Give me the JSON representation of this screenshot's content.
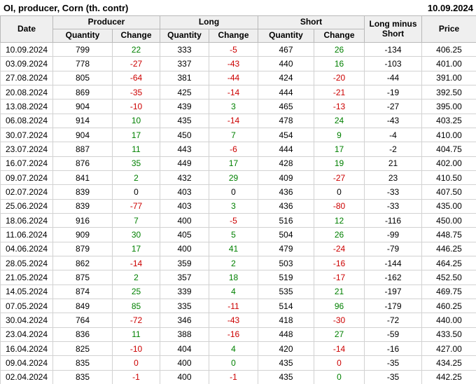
{
  "page": {
    "title": "OI, producer, Corn (th. contr)",
    "date": "10.09.2024"
  },
  "colors": {
    "positive": "#008000",
    "negative": "#cc0000",
    "neutral": "#000000",
    "header_bg": "#efefef"
  },
  "table_labels": {
    "date": "Date",
    "producer": "Producer",
    "long": "Long",
    "short": "Short",
    "quantity": "Quantity",
    "change": "Change",
    "long_minus_short": "Long minus Short",
    "price": "Price"
  },
  "chart_data": {
    "type": "table",
    "title": "OI, producer, Corn (th. contr)",
    "as_of": "10.09.2024",
    "columns": [
      "Date",
      "Producer Quantity",
      "Producer Change",
      "Long Quantity",
      "Long Change",
      "Short Quantity",
      "Short Change",
      "Long minus Short",
      "Price"
    ],
    "rows": [
      [
        "10.09.2024",
        "799",
        {
          "v": "22",
          "c": "pos"
        },
        "333",
        {
          "v": "-5",
          "c": "neg"
        },
        "467",
        {
          "v": "26",
          "c": "pos"
        },
        "-134",
        "406.25"
      ],
      [
        "03.09.2024",
        "778",
        {
          "v": "-27",
          "c": "neg"
        },
        "337",
        {
          "v": "-43",
          "c": "neg"
        },
        "440",
        {
          "v": "16",
          "c": "pos"
        },
        "-103",
        "401.00"
      ],
      [
        "27.08.2024",
        "805",
        {
          "v": "-64",
          "c": "neg"
        },
        "381",
        {
          "v": "-44",
          "c": "neg"
        },
        "424",
        {
          "v": "-20",
          "c": "neg"
        },
        "-44",
        "391.00"
      ],
      [
        "20.08.2024",
        "869",
        {
          "v": "-35",
          "c": "neg"
        },
        "425",
        {
          "v": "-14",
          "c": "neg"
        },
        "444",
        {
          "v": "-21",
          "c": "neg"
        },
        "-19",
        "392.50"
      ],
      [
        "13.08.2024",
        "904",
        {
          "v": "-10",
          "c": "neg"
        },
        "439",
        {
          "v": "3",
          "c": "pos"
        },
        "465",
        {
          "v": "-13",
          "c": "neg"
        },
        "-27",
        "395.00"
      ],
      [
        "06.08.2024",
        "914",
        {
          "v": "10",
          "c": "pos"
        },
        "435",
        {
          "v": "-14",
          "c": "neg"
        },
        "478",
        {
          "v": "24",
          "c": "pos"
        },
        "-43",
        "403.25"
      ],
      [
        "30.07.2024",
        "904",
        {
          "v": "17",
          "c": "pos"
        },
        "450",
        {
          "v": "7",
          "c": "pos"
        },
        "454",
        {
          "v": "9",
          "c": "pos"
        },
        "-4",
        "410.00"
      ],
      [
        "23.07.2024",
        "887",
        {
          "v": "11",
          "c": "pos"
        },
        "443",
        {
          "v": "-6",
          "c": "neg"
        },
        "444",
        {
          "v": "17",
          "c": "pos"
        },
        "-2",
        "404.75"
      ],
      [
        "16.07.2024",
        "876",
        {
          "v": "35",
          "c": "pos"
        },
        "449",
        {
          "v": "17",
          "c": "pos"
        },
        "428",
        {
          "v": "19",
          "c": "pos"
        },
        "21",
        "402.00"
      ],
      [
        "09.07.2024",
        "841",
        {
          "v": "2",
          "c": "pos"
        },
        "432",
        {
          "v": "29",
          "c": "pos"
        },
        "409",
        {
          "v": "-27",
          "c": "neg"
        },
        "23",
        "410.50"
      ],
      [
        "02.07.2024",
        "839",
        {
          "v": "0",
          "c": "zero"
        },
        "403",
        {
          "v": "0",
          "c": "zero"
        },
        "436",
        {
          "v": "0",
          "c": "zero"
        },
        "-33",
        "407.50"
      ],
      [
        "25.06.2024",
        "839",
        {
          "v": "-77",
          "c": "neg"
        },
        "403",
        {
          "v": "3",
          "c": "pos"
        },
        "436",
        {
          "v": "-80",
          "c": "neg"
        },
        "-33",
        "435.00"
      ],
      [
        "18.06.2024",
        "916",
        {
          "v": "7",
          "c": "pos"
        },
        "400",
        {
          "v": "-5",
          "c": "neg"
        },
        "516",
        {
          "v": "12",
          "c": "pos"
        },
        "-116",
        "450.00"
      ],
      [
        "11.06.2024",
        "909",
        {
          "v": "30",
          "c": "pos"
        },
        "405",
        {
          "v": "5",
          "c": "pos"
        },
        "504",
        {
          "v": "26",
          "c": "pos"
        },
        "-99",
        "448.75"
      ],
      [
        "04.06.2024",
        "879",
        {
          "v": "17",
          "c": "pos"
        },
        "400",
        {
          "v": "41",
          "c": "pos"
        },
        "479",
        {
          "v": "-24",
          "c": "neg"
        },
        "-79",
        "446.25"
      ],
      [
        "28.05.2024",
        "862",
        {
          "v": "-14",
          "c": "neg"
        },
        "359",
        {
          "v": "2",
          "c": "pos"
        },
        "503",
        {
          "v": "-16",
          "c": "neg"
        },
        "-144",
        "464.25"
      ],
      [
        "21.05.2024",
        "875",
        {
          "v": "2",
          "c": "pos"
        },
        "357",
        {
          "v": "18",
          "c": "pos"
        },
        "519",
        {
          "v": "-17",
          "c": "neg"
        },
        "-162",
        "452.50"
      ],
      [
        "14.05.2024",
        "874",
        {
          "v": "25",
          "c": "pos"
        },
        "339",
        {
          "v": "4",
          "c": "pos"
        },
        "535",
        {
          "v": "21",
          "c": "pos"
        },
        "-197",
        "469.75"
      ],
      [
        "07.05.2024",
        "849",
        {
          "v": "85",
          "c": "pos"
        },
        "335",
        {
          "v": "-11",
          "c": "neg"
        },
        "514",
        {
          "v": "96",
          "c": "pos"
        },
        "-179",
        "460.25"
      ],
      [
        "30.04.2024",
        "764",
        {
          "v": "-72",
          "c": "neg"
        },
        "346",
        {
          "v": "-43",
          "c": "neg"
        },
        "418",
        {
          "v": "-30",
          "c": "neg"
        },
        "-72",
        "440.00"
      ],
      [
        "23.04.2024",
        "836",
        {
          "v": "11",
          "c": "pos"
        },
        "388",
        {
          "v": "-16",
          "c": "neg"
        },
        "448",
        {
          "v": "27",
          "c": "pos"
        },
        "-59",
        "433.50"
      ],
      [
        "16.04.2024",
        "825",
        {
          "v": "-10",
          "c": "neg"
        },
        "404",
        {
          "v": "4",
          "c": "pos"
        },
        "420",
        {
          "v": "-14",
          "c": "neg"
        },
        "-16",
        "427.00"
      ],
      [
        "09.04.2024",
        "835",
        {
          "v": "0",
          "c": "neg"
        },
        "400",
        {
          "v": "0",
          "c": "pos"
        },
        "435",
        {
          "v": "0",
          "c": "neg"
        },
        "-35",
        "434.25"
      ],
      [
        "02.04.2024",
        "835",
        {
          "v": "-1",
          "c": "neg"
        },
        "400",
        {
          "v": "-1",
          "c": "neg"
        },
        "435",
        {
          "v": "0",
          "c": "pos"
        },
        "-35",
        "442.25"
      ]
    ]
  }
}
